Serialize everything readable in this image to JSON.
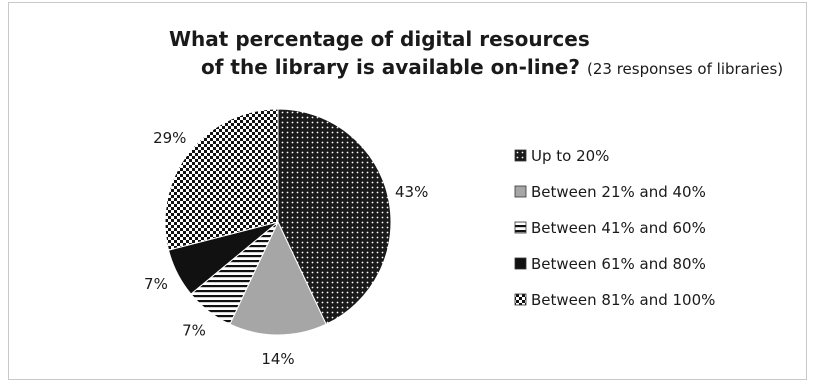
{
  "chart_data": {
    "type": "pie",
    "title": "What percentage of digital resources of the library is available on-line?",
    "title_line1": "What percentage of digital resources",
    "title_line2": "of the library is available on-line?",
    "subtitle": "(23 responses of libraries)",
    "categories": [
      "Up to 20%",
      "Between 21% and 40%",
      "Between 41% and 60%",
      "Between 61% and 80%",
      "Between 81% and 100%"
    ],
    "values": [
      43,
      14,
      7,
      7,
      29
    ],
    "data_labels": [
      "43%",
      "14%",
      "7%",
      "7%",
      "29%"
    ],
    "legend_position": "right",
    "slice_styles": [
      "dots",
      "gray",
      "hstripes",
      "black",
      "checker"
    ],
    "colors": {
      "gray": "#a6a6a6",
      "black": "#111111",
      "ink": "#1a1a1a"
    }
  }
}
